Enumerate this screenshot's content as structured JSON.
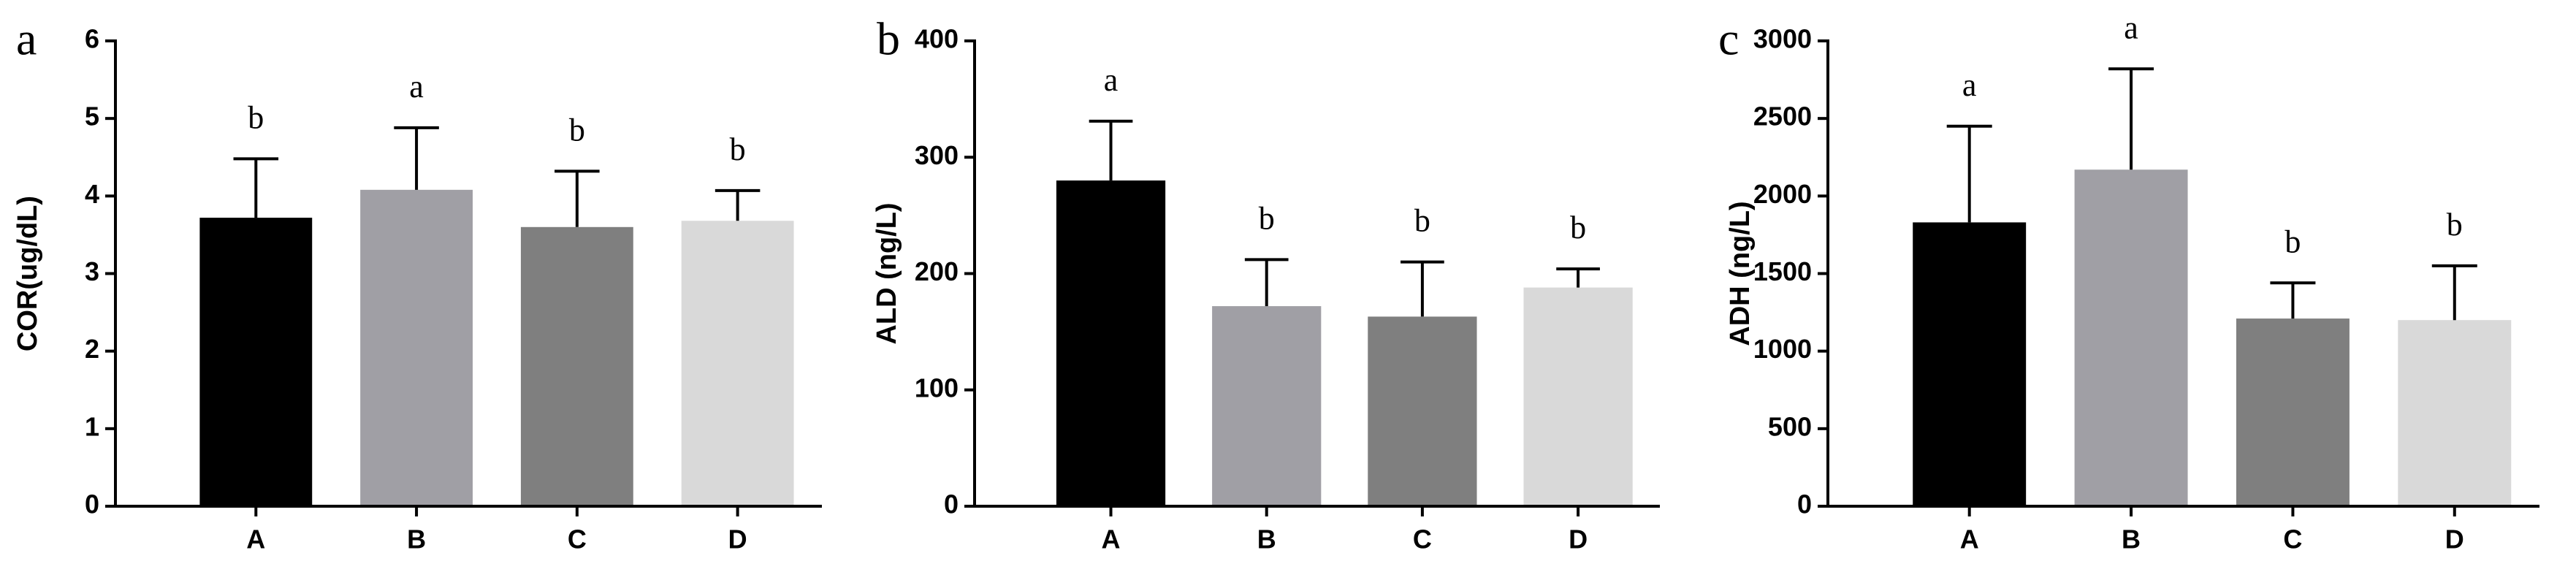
{
  "chart_data": [
    {
      "type": "bar",
      "panel_label": "a",
      "ylabel": "COR(ug/dL)",
      "categories": [
        "A",
        "B",
        "C",
        "D"
      ],
      "values": [
        3.72,
        4.08,
        3.6,
        3.68
      ],
      "errors": [
        0.76,
        0.8,
        0.72,
        0.39
      ],
      "annotations": [
        "b",
        "a",
        "b",
        "b"
      ],
      "colors": [
        "#000000",
        "#a09fa5",
        "#7f7f7f",
        "#d9d9d9"
      ],
      "ylim": [
        0,
        6
      ],
      "yticks": [
        0,
        1,
        2,
        3,
        4,
        5,
        6
      ]
    },
    {
      "type": "bar",
      "panel_label": "b",
      "ylabel": "ALD (ng/L)",
      "categories": [
        "A",
        "B",
        "C",
        "D"
      ],
      "values": [
        280,
        172,
        163,
        188
      ],
      "errors": [
        51,
        40,
        47,
        16
      ],
      "annotations": [
        "a",
        "b",
        "b",
        "b"
      ],
      "colors": [
        "#000000",
        "#a09fa5",
        "#7f7f7f",
        "#d9d9d9"
      ],
      "ylim": [
        0,
        400
      ],
      "yticks": [
        0,
        100,
        200,
        300,
        400
      ]
    },
    {
      "type": "bar",
      "panel_label": "c",
      "ylabel": "ADH (ng/L)",
      "categories": [
        "A",
        "B",
        "C",
        "D"
      ],
      "values": [
        1830,
        2170,
        1210,
        1200
      ],
      "errors": [
        620,
        650,
        230,
        350
      ],
      "annotations": [
        "a",
        "a",
        "b",
        "b"
      ],
      "colors": [
        "#000000",
        "#a09fa5",
        "#7f7f7f",
        "#d9d9d9"
      ],
      "ylim": [
        0,
        3000
      ],
      "yticks": [
        0,
        500,
        1000,
        1500,
        2000,
        2500,
        3000
      ]
    }
  ]
}
